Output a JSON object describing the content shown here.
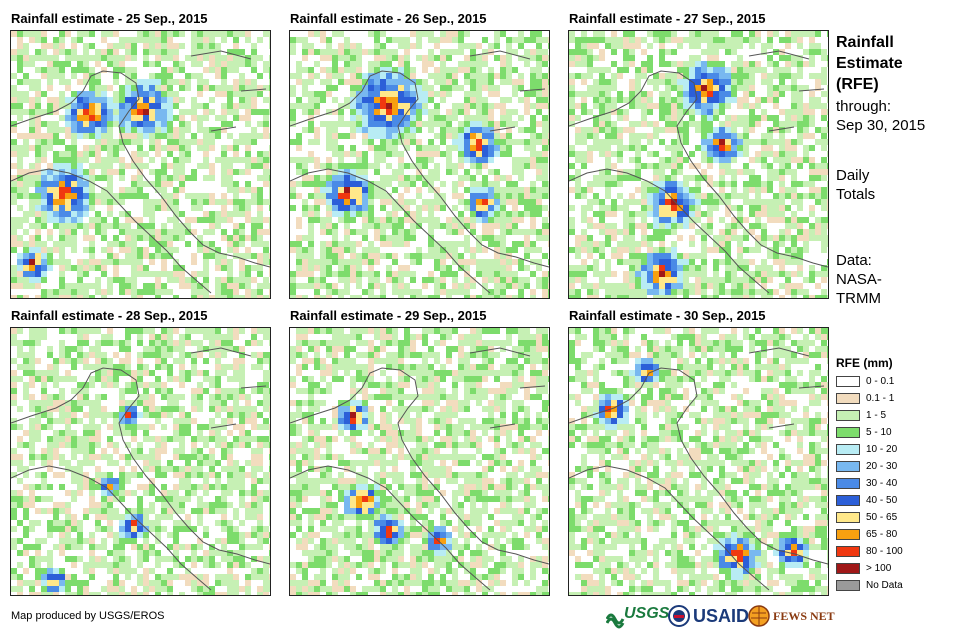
{
  "panels": [
    {
      "title": "Rainfall estimate - 25 Sep., 2015"
    },
    {
      "title": "Rainfall estimate - 26 Sep., 2015"
    },
    {
      "title": "Rainfall estimate - 27 Sep., 2015"
    },
    {
      "title": "Rainfall estimate - 28 Sep., 2015"
    },
    {
      "title": "Rainfall estimate - 29 Sep., 2015"
    },
    {
      "title": "Rainfall estimate - 30 Sep., 2015"
    }
  ],
  "side": {
    "title_line1": "Rainfall",
    "title_line2": "Estimate",
    "title_line3": "(RFE)",
    "through_label": "through:",
    "through_date": "Sep 30, 2015",
    "totals_line1": "Daily",
    "totals_line2": "Totals",
    "data_line1": "Data:",
    "data_line2": "NASA-",
    "data_line3": "TRMM"
  },
  "legend": {
    "title": "RFE (mm)",
    "items": [
      {
        "label": "0 - 0.1",
        "color": "#ffffff"
      },
      {
        "label": "0.1 - 1",
        "color": "#f2dcbe"
      },
      {
        "label": "1 - 5",
        "color": "#c6f0b4"
      },
      {
        "label": "5 - 10",
        "color": "#7ddc6c"
      },
      {
        "label": "10 - 20",
        "color": "#b8ecf4"
      },
      {
        "label": "20 - 30",
        "color": "#78b8f0"
      },
      {
        "label": "30 - 40",
        "color": "#4a8ae6"
      },
      {
        "label": "40 - 50",
        "color": "#2c5fd8"
      },
      {
        "label": "50 - 65",
        "color": "#ffe88a"
      },
      {
        "label": "65 - 80",
        "color": "#f8a010"
      },
      {
        "label": "80 - 100",
        "color": "#f03810"
      },
      {
        "label": "> 100",
        "color": "#a01818"
      },
      {
        "label": "No Data",
        "color": "#9a9a9a"
      }
    ]
  },
  "footer": {
    "credit": "Map produced by USGS/EROS",
    "usgs": "USGS",
    "usaid": "USAID",
    "fewsnet": "FEWS NET"
  }
}
